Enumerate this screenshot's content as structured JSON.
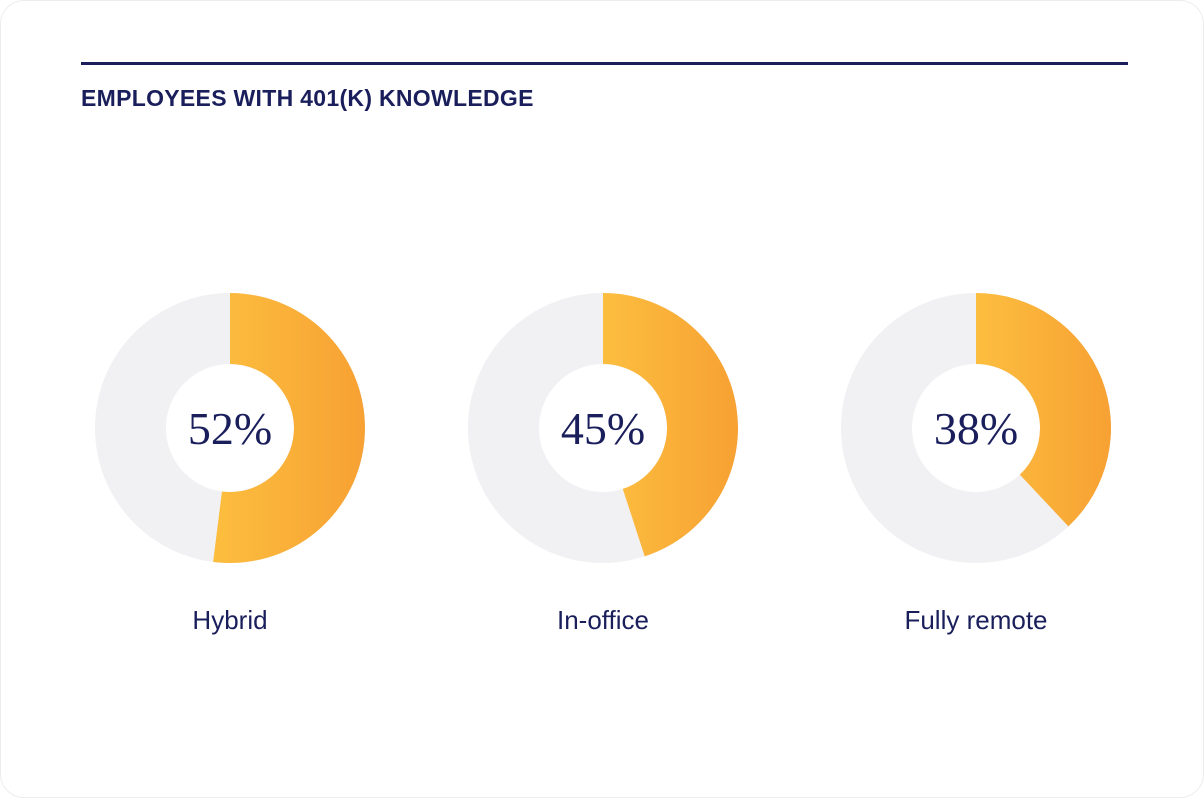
{
  "title": "EMPLOYEES WITH 401(K) KNOWLEDGE",
  "colors": {
    "navy": "#1A1F5C",
    "track": "#F1F1F3",
    "accent_light": "#FCBE3F",
    "accent_dark": "#F7A133",
    "background": "#FFFFFF"
  },
  "chart_data": {
    "type": "pie",
    "subtype": "donut",
    "title": "EMPLOYEES WITH 401(K) KNOWLEDGE",
    "categories": [
      "Hybrid",
      "In-office",
      "Fully remote"
    ],
    "values": [
      52,
      45,
      38
    ],
    "unit": "%",
    "series": [
      {
        "label": "Hybrid",
        "value": 52,
        "display": "52%"
      },
      {
        "label": "In-office",
        "value": 45,
        "display": "45%"
      },
      {
        "label": "Fully remote",
        "value": 38,
        "display": "38%"
      }
    ],
    "start_angle_deg": 0,
    "direction": "clockwise",
    "legend_position": "below-each",
    "value_label_position": "center"
  }
}
